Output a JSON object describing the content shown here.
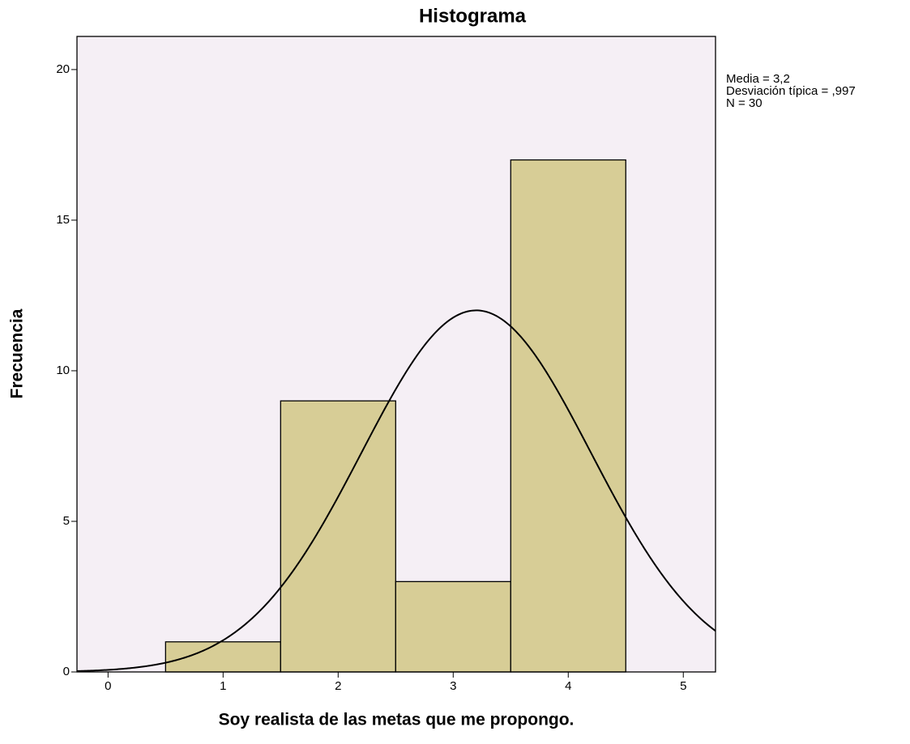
{
  "chart_data": {
    "type": "histogram",
    "title": "Histograma",
    "x_label": "Soy  realista de las metas que me propongo.",
    "y_label": "Frecuencia",
    "bins": [
      0.5,
      1.5,
      2.5,
      3.5,
      4.5
    ],
    "values": [
      1,
      9,
      3,
      17
    ],
    "color": "#d7cd96",
    "background": "#f5eff5",
    "xlim": [
      -0.27,
      5.28
    ],
    "xticks": [
      0,
      1,
      2,
      3,
      4,
      5
    ],
    "ylim": [
      0,
      21.1
    ],
    "yticks": [
      0,
      5,
      10,
      15,
      20
    ],
    "grid": false,
    "normal_curve": true,
    "stats": [
      {
        "value": 3.2,
        "label": "Media = 3,2"
      },
      {
        "value": 0.997,
        "label": "Desviación típica = ,997"
      },
      {
        "value": 30,
        "label": "N = 30"
      }
    ]
  }
}
